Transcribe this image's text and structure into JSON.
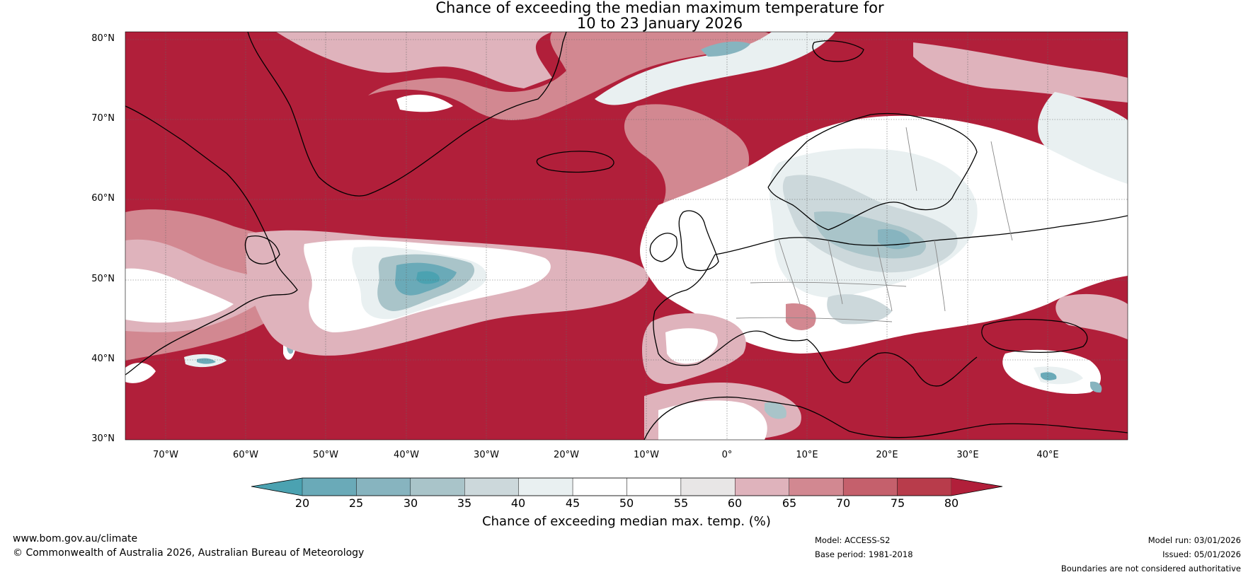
{
  "title": {
    "line1": "Chance of exceeding the median maximum temperature for",
    "line2": "10 to 23 January 2026"
  },
  "map": {
    "lat_labels": [
      "80°N",
      "70°N",
      "60°N",
      "50°N",
      "40°N",
      "30°N"
    ],
    "lon_labels": [
      "70°W",
      "60°W",
      "50°W",
      "40°W",
      "30°W",
      "20°W",
      "10°W",
      "0°",
      "10°E",
      "20°E",
      "30°E",
      "40°E"
    ],
    "lat_range": [
      30,
      81
    ],
    "lon_range": [
      -75,
      50
    ]
  },
  "colorbar": {
    "ticks": [
      "20",
      "25",
      "30",
      "35",
      "40",
      "45",
      "50",
      "55",
      "60",
      "65",
      "70",
      "75",
      "80"
    ],
    "colors": [
      "#4ba2b1",
      "#6aaab8",
      "#87b4bf",
      "#a9c4c9",
      "#ccd8db",
      "#e9f0f1",
      "#ffffff",
      "#ffffff",
      "#e8e6e6",
      "#dfb3bc",
      "#d28891",
      "#c5606c",
      "#b83c4b",
      "#b11f3a"
    ],
    "title": "Chance of exceeding median max. temp. (%)"
  },
  "footer": {
    "website": "www.bom.gov.au/climate",
    "copyright": "© Commonwealth of Australia 2026, Australian Bureau of Meteorology",
    "model": "Model: ACCESS-S2",
    "base_period": "Base period: 1981-2018",
    "model_run": "Model run: 03/01/2026",
    "issued": "Issued: 05/01/2026",
    "disclaimer": "Boundaries are not considered authoritative"
  }
}
